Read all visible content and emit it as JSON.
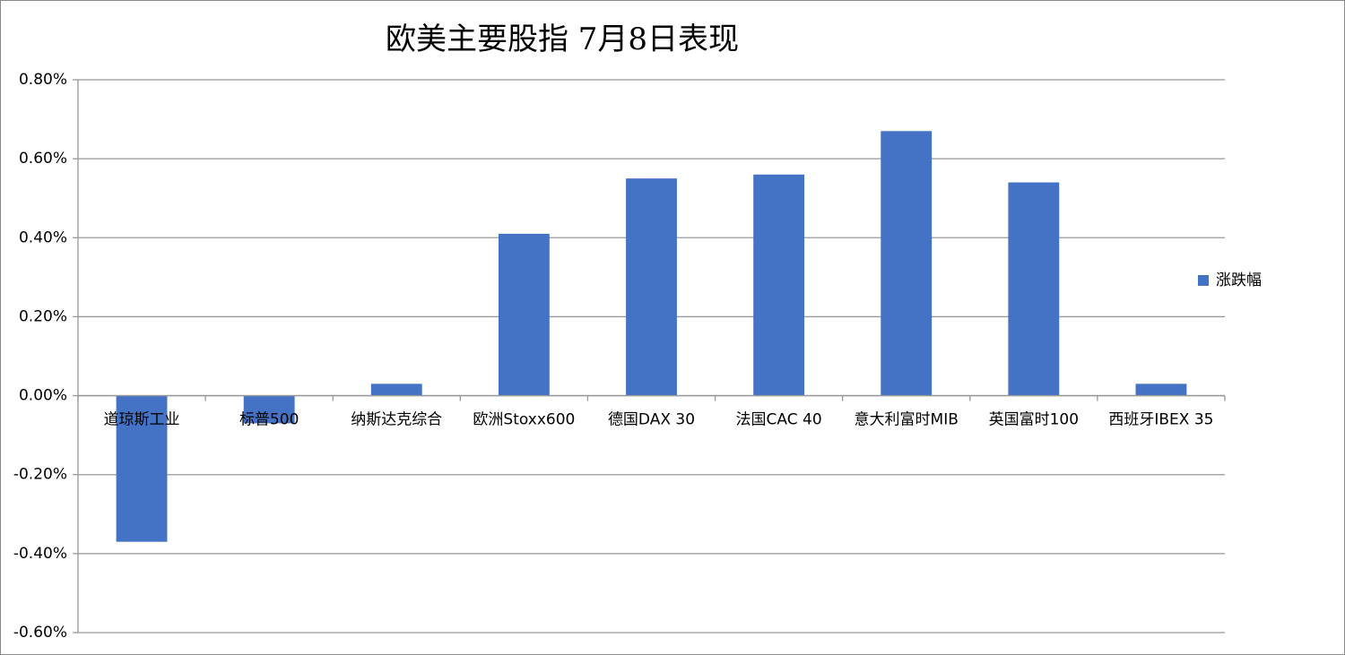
{
  "chart_data": {
    "type": "bar",
    "title": "欧美主要股指   7月8日表现",
    "categories": [
      "道琼斯工业",
      "标普500",
      "纳斯达克综合",
      "欧洲Stoxx600",
      "德国DAX 30",
      "法国CAC 40",
      "意大利富时MIB",
      "英国富时100",
      "西班牙IBEX 35"
    ],
    "series": [
      {
        "name": "涨跌幅",
        "color": "#4472c4",
        "values": [
          -0.37,
          -0.07,
          0.03,
          0.41,
          0.55,
          0.56,
          0.67,
          0.54,
          0.03
        ]
      }
    ],
    "ylim": [
      -0.6,
      0.8
    ],
    "yticks": [
      {
        "value": -0.6,
        "label": "-0.60%"
      },
      {
        "value": -0.4,
        "label": "-0.40%"
      },
      {
        "value": -0.2,
        "label": "-0.20%"
      },
      {
        "value": 0,
        "label": "0.00%"
      },
      {
        "value": 0.2,
        "label": "0.20%"
      },
      {
        "value": 0.4,
        "label": "0.40%"
      },
      {
        "value": 0.6,
        "label": "0.60%"
      },
      {
        "value": 0.8,
        "label": "0.80%"
      }
    ],
    "grid": true,
    "legend": "right"
  }
}
